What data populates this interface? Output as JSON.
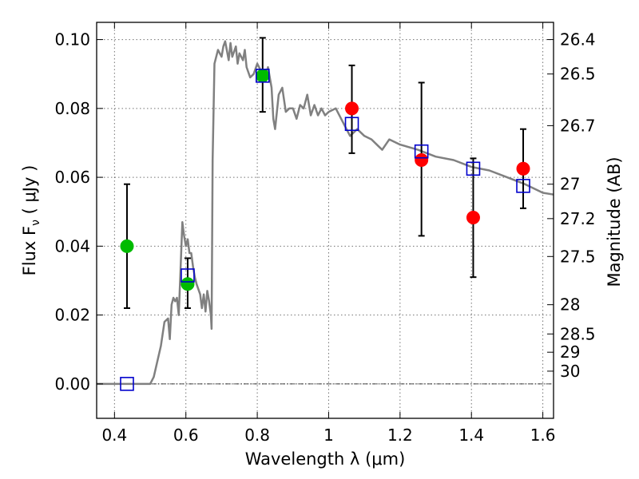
{
  "chart_data": {
    "type": "scatter",
    "xlabel": "Wavelength  λ (μm)",
    "ylabel": "Flux  F",
    "ylabel_sub": "ν",
    "ylabel_unit": " ( μJy )",
    "y2label": "Magnitude (AB)",
    "xlim": [
      0.35,
      1.63
    ],
    "ylim": [
      -0.01,
      0.105
    ],
    "grid": true,
    "xticks": [
      0.4,
      0.6,
      0.8,
      1.0,
      1.2,
      1.4,
      1.6
    ],
    "xtick_labels": [
      "0.4",
      "0.6",
      "0.8",
      "1",
      "1.2",
      "1.4",
      "1.6"
    ],
    "yticks": [
      0.0,
      0.02,
      0.04,
      0.06,
      0.08,
      0.1
    ],
    "ytick_labels": [
      "0.00",
      "0.02",
      "0.04",
      "0.06",
      "0.08",
      "0.10"
    ],
    "y2ticks": [
      {
        "flux": 0.1,
        "label": "26.4"
      },
      {
        "flux": 0.09,
        "label": "26.5"
      },
      {
        "flux": 0.075,
        "label": "26.7"
      },
      {
        "flux": 0.058,
        "label": "27"
      },
      {
        "flux": 0.048,
        "label": "27.2"
      },
      {
        "flux": 0.037,
        "label": "27.5"
      },
      {
        "flux": 0.023,
        "label": "28"
      },
      {
        "flux": 0.0145,
        "label": "28.5"
      },
      {
        "flux": 0.0092,
        "label": "29"
      },
      {
        "flux": 0.0037,
        "label": "30"
      }
    ],
    "model_spectrum": {
      "color": "#808080",
      "x": [
        0.35,
        0.5,
        0.51,
        0.53,
        0.54,
        0.55,
        0.555,
        0.56,
        0.565,
        0.57,
        0.575,
        0.58,
        0.585,
        0.59,
        0.595,
        0.6,
        0.605,
        0.61,
        0.615,
        0.62,
        0.625,
        0.63,
        0.64,
        0.645,
        0.65,
        0.655,
        0.66,
        0.665,
        0.67,
        0.672,
        0.675,
        0.68,
        0.69,
        0.7,
        0.705,
        0.71,
        0.72,
        0.725,
        0.73,
        0.74,
        0.745,
        0.75,
        0.76,
        0.765,
        0.77,
        0.78,
        0.79,
        0.8,
        0.81,
        0.82,
        0.83,
        0.84,
        0.845,
        0.85,
        0.86,
        0.87,
        0.88,
        0.89,
        0.9,
        0.91,
        0.92,
        0.93,
        0.94,
        0.95,
        0.96,
        0.97,
        0.98,
        0.99,
        1.0,
        1.02,
        1.04,
        1.06,
        1.08,
        1.1,
        1.12,
        1.14,
        1.15,
        1.17,
        1.2,
        1.25,
        1.3,
        1.35,
        1.4,
        1.45,
        1.5,
        1.55,
        1.6,
        1.63
      ],
      "y": [
        0.0,
        0.0,
        0.002,
        0.011,
        0.018,
        0.019,
        0.013,
        0.023,
        0.025,
        0.024,
        0.025,
        0.02,
        0.033,
        0.047,
        0.043,
        0.04,
        0.042,
        0.038,
        0.038,
        0.034,
        0.031,
        0.029,
        0.026,
        0.022,
        0.026,
        0.021,
        0.027,
        0.024,
        0.02,
        0.016,
        0.065,
        0.093,
        0.097,
        0.095,
        0.098,
        0.0995,
        0.094,
        0.099,
        0.095,
        0.098,
        0.093,
        0.096,
        0.094,
        0.097,
        0.092,
        0.089,
        0.09,
        0.093,
        0.091,
        0.088,
        0.092,
        0.086,
        0.077,
        0.074,
        0.084,
        0.086,
        0.079,
        0.08,
        0.08,
        0.077,
        0.081,
        0.08,
        0.084,
        0.078,
        0.081,
        0.078,
        0.08,
        0.078,
        0.079,
        0.08,
        0.076,
        0.072,
        0.074,
        0.072,
        0.071,
        0.069,
        0.068,
        0.071,
        0.0695,
        0.068,
        0.066,
        0.065,
        0.063,
        0.062,
        0.06,
        0.058,
        0.0555,
        0.055
      ]
    },
    "series": [
      {
        "color": "#00bb00",
        "marker": "circle",
        "x": [
          0.435,
          0.605,
          0.815
        ],
        "y": [
          0.04,
          0.029,
          0.0895
        ],
        "yerr_low": [
          0.022,
          0.022,
          0.079
        ],
        "yerr_high": [
          0.058,
          0.0365,
          0.1005
        ]
      },
      {
        "color": "#ff0000",
        "marker": "circle",
        "x": [
          1.065,
          1.26,
          1.405,
          1.545
        ],
        "y": [
          0.08,
          0.065,
          0.0483,
          0.0625
        ],
        "yerr_low": [
          0.067,
          0.043,
          0.031,
          0.051
        ],
        "yerr_high": [
          0.0925,
          0.0875,
          0.0655,
          0.074
        ]
      },
      {
        "color": "#0000cc",
        "marker": "square-open",
        "x": [
          0.435,
          0.605,
          0.815,
          1.065,
          1.26,
          1.405,
          1.545
        ],
        "y": [
          0.0,
          0.0315,
          0.0895,
          0.0755,
          0.0675,
          0.0625,
          0.0575
        ]
      }
    ]
  }
}
